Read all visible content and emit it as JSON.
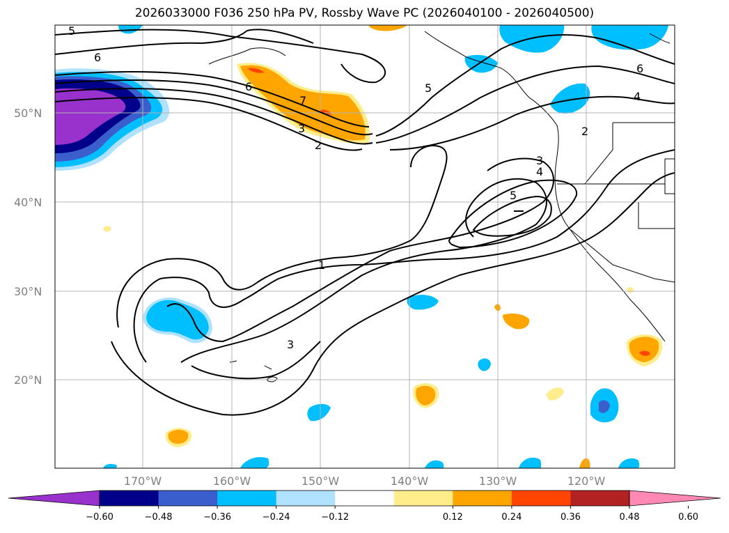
{
  "title": "2026033000 F036 250 hPa PV, Rossby Wave PC (2026040100 - 2026040500)",
  "lat_labels": [
    "50°N",
    "40°N",
    "30°N",
    "20°N"
  ],
  "lon_labels": [
    "170°W",
    "160°W",
    "150°W",
    "140°W",
    "130°W",
    "120°W"
  ],
  "contour_labels": [
    "5",
    "6",
    "6",
    "7",
    "3",
    "2",
    "5",
    "6",
    "4",
    "2",
    "3",
    "4",
    "5",
    "1",
    "3"
  ],
  "colorbar": {
    "ticks": [
      "−0.60",
      "−0.48",
      "−0.36",
      "−0.24",
      "−0.12",
      "0.12",
      "0.24",
      "0.36",
      "0.48",
      "0.60"
    ],
    "colors": [
      "#9932cc",
      "#00008b",
      "#3a5fcd",
      "#00bfff",
      "#b0e2ff",
      "#ffffff",
      "#ffec8b",
      "#ffa500",
      "#ff4500",
      "#b22222",
      "#ff89b2"
    ]
  }
}
